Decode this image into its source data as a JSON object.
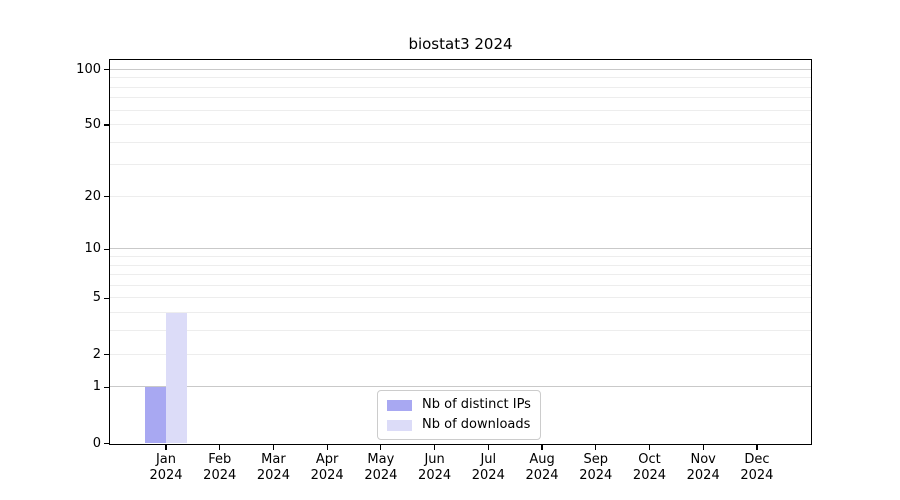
{
  "chart_data": {
    "type": "bar",
    "title": "biostat3 2024",
    "scale": "log1p",
    "categories": [
      "Jan",
      "Feb",
      "Mar",
      "Apr",
      "May",
      "Jun",
      "Jul",
      "Aug",
      "Sep",
      "Oct",
      "Nov",
      "Dec"
    ],
    "year_label": "2024",
    "series": [
      {
        "name": "Nb of distinct IPs",
        "color": "#a8a8f2",
        "values": [
          1,
          0,
          0,
          0,
          0,
          0,
          0,
          0,
          0,
          0,
          0,
          0
        ]
      },
      {
        "name": "Nb of downloads",
        "color": "#dcdcf8",
        "values": [
          4,
          0,
          0,
          0,
          0,
          0,
          0,
          0,
          0,
          0,
          0,
          0
        ]
      }
    ],
    "y_ticks": [
      0,
      1,
      2,
      5,
      10,
      20,
      50,
      100
    ],
    "y_major_grid": [
      1,
      10,
      100
    ],
    "y_minor_grid": [
      2,
      3,
      4,
      5,
      6,
      7,
      8,
      9,
      20,
      30,
      40,
      50,
      60,
      70,
      80,
      90
    ],
    "ylim": [
      0,
      113
    ],
    "grid": true,
    "legend_position": "lower center",
    "colors": {
      "background": "#ffffff",
      "axis": "#000000",
      "major_grid": "#c9c9c9",
      "minor_grid": "#ededed",
      "legend_border": "#cccccc"
    }
  }
}
